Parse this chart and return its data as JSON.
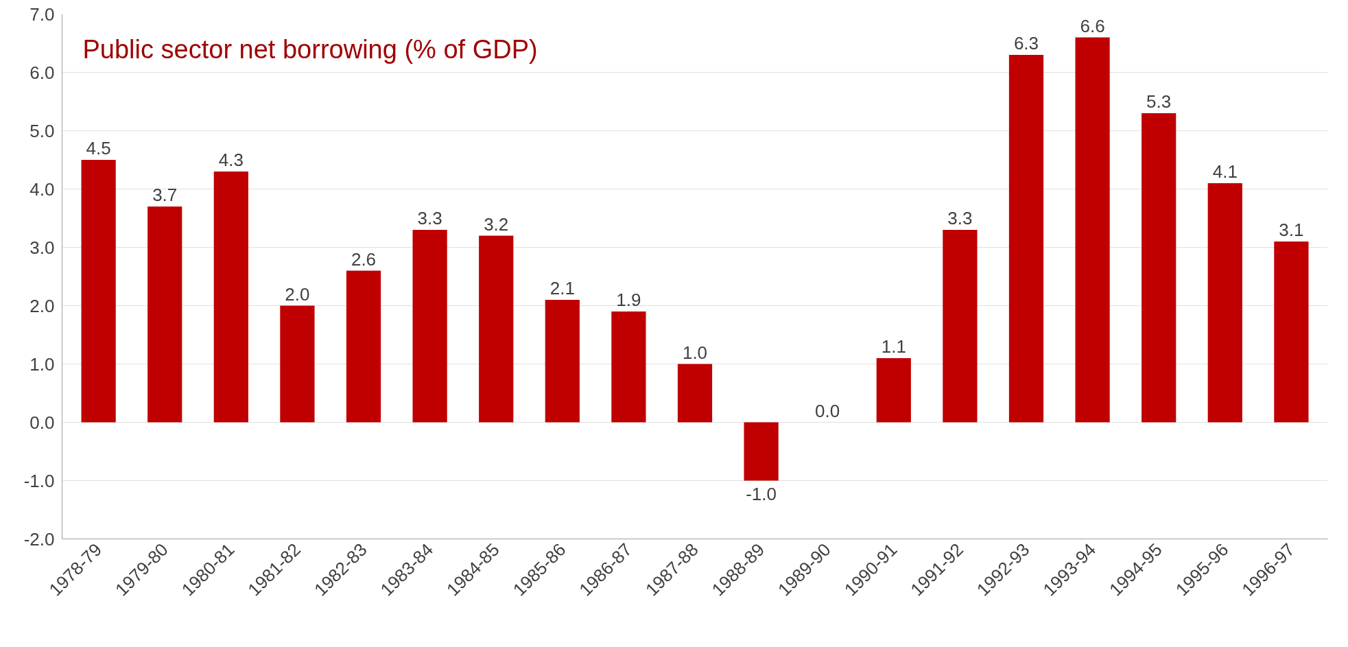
{
  "chart_data": {
    "type": "bar",
    "title": "Public sector net borrowing (% of GDP)",
    "categories": [
      "1978-79",
      "1979-80",
      "1980-81",
      "1981-82",
      "1982-83",
      "1983-84",
      "1984-85",
      "1985-86",
      "1986-87",
      "1987-88",
      "1988-89",
      "1989-90",
      "1990-91",
      "1991-92",
      "1992-93",
      "1993-94",
      "1994-95",
      "1995-96",
      "1996-97"
    ],
    "values": [
      4.5,
      3.7,
      4.3,
      2.0,
      2.6,
      3.3,
      3.2,
      2.1,
      1.9,
      1.0,
      -1.0,
      0.0,
      1.1,
      3.3,
      6.3,
      6.6,
      5.3,
      4.1,
      3.1
    ],
    "value_labels": [
      "4.5",
      "3.7",
      "4.3",
      "2.0",
      "2.6",
      "3.3",
      "3.2",
      "2.1",
      "1.9",
      "1.0",
      "-1.0",
      "0.0",
      "1.1",
      "3.3",
      "6.3",
      "6.6",
      "5.3",
      "4.1",
      "3.1"
    ],
    "color": "#c00000",
    "ylim": [
      -2,
      7
    ],
    "yticks": [
      {
        "value": -2,
        "label": "-2.0"
      },
      {
        "value": -1,
        "label": "-1.0"
      },
      {
        "value": 0,
        "label": "0.0"
      },
      {
        "value": 1,
        "label": "1.0"
      },
      {
        "value": 2,
        "label": "2.0"
      },
      {
        "value": 3,
        "label": "3.0"
      },
      {
        "value": 4,
        "label": "4.0"
      },
      {
        "value": 5,
        "label": "5.0"
      },
      {
        "value": 6,
        "label": "6.0"
      },
      {
        "value": 7,
        "label": "7.0"
      }
    ],
    "grid": "y"
  }
}
